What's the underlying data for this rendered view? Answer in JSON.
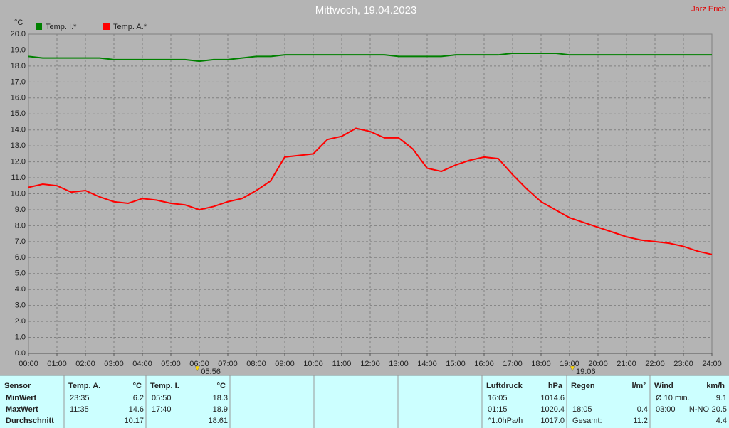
{
  "chart_data": {
    "type": "line",
    "title": "Mittwoch, 19.04.2023",
    "author": "Jarz Erich",
    "y_label": "°C",
    "x": [
      0,
      0.5,
      1,
      1.5,
      2,
      2.5,
      3,
      3.5,
      4,
      4.5,
      5,
      5.5,
      6,
      6.5,
      7,
      7.5,
      8,
      8.5,
      9,
      9.5,
      10,
      10.5,
      11,
      11.5,
      12,
      12.5,
      13,
      13.5,
      14,
      14.5,
      15,
      15.5,
      16,
      16.5,
      17,
      17.5,
      18,
      18.5,
      19,
      19.5,
      20,
      20.5,
      21,
      21.5,
      22,
      22.5,
      23,
      23.5,
      24
    ],
    "series": [
      {
        "name": "Temp. I.*",
        "color": "#008000",
        "values": [
          18.6,
          18.5,
          18.5,
          18.5,
          18.5,
          18.5,
          18.4,
          18.4,
          18.4,
          18.4,
          18.4,
          18.4,
          18.3,
          18.4,
          18.4,
          18.5,
          18.6,
          18.6,
          18.7,
          18.7,
          18.7,
          18.7,
          18.7,
          18.7,
          18.7,
          18.7,
          18.6,
          18.6,
          18.6,
          18.6,
          18.7,
          18.7,
          18.7,
          18.7,
          18.8,
          18.8,
          18.8,
          18.8,
          18.7,
          18.7,
          18.7,
          18.7,
          18.7,
          18.7,
          18.7,
          18.7,
          18.7,
          18.7,
          18.7
        ]
      },
      {
        "name": "Temp. A.*",
        "color": "#ff0000",
        "values": [
          10.4,
          10.6,
          10.5,
          10.1,
          10.2,
          9.8,
          9.5,
          9.4,
          9.7,
          9.6,
          9.4,
          9.3,
          9.0,
          9.2,
          9.5,
          9.7,
          10.2,
          10.8,
          12.3,
          12.4,
          12.5,
          13.4,
          13.6,
          14.1,
          13.9,
          13.5,
          13.5,
          12.8,
          11.6,
          11.4,
          11.8,
          12.1,
          12.3,
          12.2,
          11.2,
          10.3,
          9.5,
          9.0,
          8.5,
          8.2,
          7.9,
          7.6,
          7.3,
          7.1,
          7.0,
          6.9,
          6.7,
          6.4,
          6.2
        ]
      }
    ],
    "xlim": [
      0,
      24
    ],
    "xticks": [
      {
        "value": 0,
        "label": "00:00"
      },
      {
        "value": 1,
        "label": "01:00"
      },
      {
        "value": 2,
        "label": "02:00"
      },
      {
        "value": 3,
        "label": "03:00"
      },
      {
        "value": 4,
        "label": "04:00"
      },
      {
        "value": 5,
        "label": "05:00"
      },
      {
        "value": 6,
        "label": "06:00"
      },
      {
        "value": 7,
        "label": "07:00"
      },
      {
        "value": 8,
        "label": "08:00"
      },
      {
        "value": 9,
        "label": "09:00"
      },
      {
        "value": 10,
        "label": "10:00"
      },
      {
        "value": 11,
        "label": "11:00"
      },
      {
        "value": 12,
        "label": "12:00"
      },
      {
        "value": 13,
        "label": "13:00"
      },
      {
        "value": 14,
        "label": "14:00"
      },
      {
        "value": 15,
        "label": "15:00"
      },
      {
        "value": 16,
        "label": "16:00"
      },
      {
        "value": 17,
        "label": "17:00"
      },
      {
        "value": 18,
        "label": "18:00"
      },
      {
        "value": 19,
        "label": "19:00"
      },
      {
        "value": 20,
        "label": "20:00"
      },
      {
        "value": 21,
        "label": "21:00"
      },
      {
        "value": 22,
        "label": "22:00"
      },
      {
        "value": 23,
        "label": "23:00"
      },
      {
        "value": 24,
        "label": "24:00"
      }
    ],
    "ylim": [
      0,
      20
    ],
    "yticks": [
      {
        "value": 0,
        "label": "0.0"
      },
      {
        "value": 1,
        "label": "1.0"
      },
      {
        "value": 2,
        "label": "2.0"
      },
      {
        "value": 3,
        "label": "3.0"
      },
      {
        "value": 4,
        "label": "4.0"
      },
      {
        "value": 5,
        "label": "5.0"
      },
      {
        "value": 6,
        "label": "6.0"
      },
      {
        "value": 7,
        "label": "7.0"
      },
      {
        "value": 8,
        "label": "8.0"
      },
      {
        "value": 9,
        "label": "9.0"
      },
      {
        "value": 10,
        "label": "10.0"
      },
      {
        "value": 11,
        "label": "11.0"
      },
      {
        "value": 12,
        "label": "12.0"
      },
      {
        "value": 13,
        "label": "13.0"
      },
      {
        "value": 14,
        "label": "14.0"
      },
      {
        "value": 15,
        "label": "15.0"
      },
      {
        "value": 16,
        "label": "16.0"
      },
      {
        "value": 17,
        "label": "17.0"
      },
      {
        "value": 18,
        "label": "18.0"
      },
      {
        "value": 19,
        "label": "19.0"
      },
      {
        "value": 20,
        "label": "20.0"
      }
    ],
    "grid": true,
    "annotations": [
      {
        "x": 5.933,
        "text": "05:56"
      },
      {
        "x": 19.1,
        "text": "19:06"
      }
    ]
  },
  "table": {
    "groups": [
      {
        "header": [
          "Sensor"
        ],
        "rows": [
          [
            "MinWert"
          ],
          [
            "MaxWert"
          ],
          [
            "Durchschnitt"
          ]
        ]
      },
      {
        "header": [
          "Temp. A.",
          "°C"
        ],
        "rows": [
          [
            "23:35",
            "6.2"
          ],
          [
            "11:35",
            "14.6"
          ],
          [
            null,
            "10.17"
          ]
        ]
      },
      {
        "header": [
          "Temp. I.",
          "°C"
        ],
        "rows": [
          [
            "05:50",
            "18.3"
          ],
          [
            "17:40",
            "18.9"
          ],
          [
            null,
            "18.61"
          ]
        ]
      },
      {
        "header": [
          "Luftdruck",
          "hPa"
        ],
        "rows": [
          [
            "16:05",
            "1014.6"
          ],
          [
            "01:15",
            "1020.4"
          ],
          [
            "^1.0hPa/h",
            "1017.0"
          ]
        ]
      },
      {
        "header": [
          "Regen",
          "l/m²"
        ],
        "rows": [
          [
            null,
            null
          ],
          [
            "18:05",
            "0.4"
          ],
          [
            "Gesamt:",
            "11.2"
          ]
        ]
      },
      {
        "header": [
          "Wind",
          "km/h"
        ],
        "rows": [
          [
            "Ø 10 min.",
            null,
            "9.1"
          ],
          [
            "03:00",
            "N-NO",
            "20.5"
          ],
          [
            null,
            null,
            "4.4"
          ]
        ]
      }
    ]
  }
}
